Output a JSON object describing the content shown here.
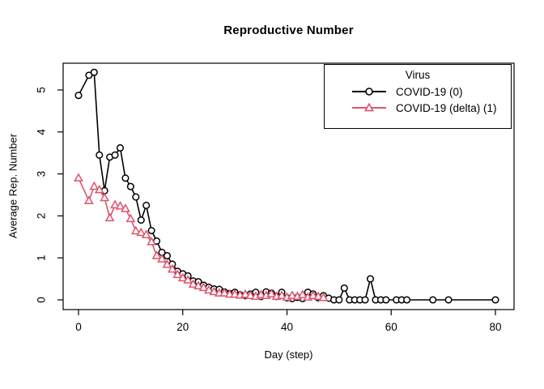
{
  "chart_data": {
    "type": "line",
    "title": "Reproductive Number",
    "xlabel": "Day (step)",
    "ylabel": "Average Rep. Number",
    "xlim": [
      0,
      80
    ],
    "ylim": [
      0,
      5.45
    ],
    "xticks": [
      0,
      20,
      40,
      60,
      80
    ],
    "yticks": [
      0,
      1,
      2,
      3,
      4,
      5
    ],
    "grid": false,
    "marker_style": "open",
    "legend": {
      "title": "Virus",
      "position": "top-right",
      "entries": [
        {
          "label": "COVID-19 (0)",
          "color": "#000000",
          "marker": "circle"
        },
        {
          "label": "COVID-19 (delta) (1)",
          "color": "#DF536B",
          "marker": "triangle"
        }
      ]
    },
    "series": [
      {
        "name": "COVID-19 (0)",
        "color": "#000000",
        "marker": "circle",
        "points": [
          [
            0,
            4.87
          ],
          [
            2,
            5.35
          ],
          [
            3,
            5.42
          ],
          [
            4,
            3.45
          ],
          [
            5,
            2.6
          ],
          [
            6,
            3.4
          ],
          [
            7,
            3.45
          ],
          [
            8,
            3.62
          ],
          [
            9,
            2.9
          ],
          [
            10,
            2.7
          ],
          [
            11,
            2.45
          ],
          [
            12,
            1.9
          ],
          [
            13,
            2.25
          ],
          [
            14,
            1.65
          ],
          [
            15,
            1.4
          ],
          [
            16,
            1.13
          ],
          [
            17,
            1.05
          ],
          [
            18,
            0.85
          ],
          [
            19,
            0.68
          ],
          [
            20,
            0.62
          ],
          [
            21,
            0.57
          ],
          [
            22,
            0.45
          ],
          [
            23,
            0.43
          ],
          [
            24,
            0.35
          ],
          [
            25,
            0.3
          ],
          [
            26,
            0.26
          ],
          [
            27,
            0.25
          ],
          [
            28,
            0.19
          ],
          [
            29,
            0.15
          ],
          [
            30,
            0.18
          ],
          [
            31,
            0.12
          ],
          [
            32,
            0.1
          ],
          [
            33,
            0.14
          ],
          [
            34,
            0.18
          ],
          [
            35,
            0.08
          ],
          [
            36,
            0.19
          ],
          [
            37,
            0.16
          ],
          [
            38,
            0.08
          ],
          [
            39,
            0.18
          ],
          [
            40,
            0.05
          ],
          [
            41,
            0.03
          ],
          [
            42,
            0.06
          ],
          [
            43,
            0.03
          ],
          [
            44,
            0.18
          ],
          [
            45,
            0.14
          ],
          [
            46,
            0.05
          ],
          [
            47,
            0.1
          ],
          [
            48,
            0.04
          ],
          [
            49,
            0
          ],
          [
            50,
            0
          ],
          [
            51,
            0.28
          ],
          [
            52,
            0
          ],
          [
            53,
            0
          ],
          [
            54,
            0
          ],
          [
            55,
            0
          ],
          [
            56,
            0.5
          ],
          [
            57,
            0
          ],
          [
            58,
            0
          ],
          [
            59,
            0
          ],
          [
            61,
            0
          ],
          [
            62,
            0
          ],
          [
            63,
            0
          ],
          [
            68,
            0
          ],
          [
            71,
            0
          ],
          [
            80,
            0
          ]
        ]
      },
      {
        "name": "COVID-19 (delta) (1)",
        "color": "#DF536B",
        "marker": "triangle",
        "points": [
          [
            0,
            2.9
          ],
          [
            2,
            2.36
          ],
          [
            3,
            2.7
          ],
          [
            4,
            2.62
          ],
          [
            5,
            2.43
          ],
          [
            6,
            1.95
          ],
          [
            7,
            2.26
          ],
          [
            8,
            2.23
          ],
          [
            9,
            2.17
          ],
          [
            10,
            1.93
          ],
          [
            11,
            1.64
          ],
          [
            12,
            1.6
          ],
          [
            13,
            1.55
          ],
          [
            14,
            1.38
          ],
          [
            15,
            1.05
          ],
          [
            16,
            0.97
          ],
          [
            17,
            0.84
          ],
          [
            18,
            0.73
          ],
          [
            19,
            0.6
          ],
          [
            20,
            0.52
          ],
          [
            21,
            0.47
          ],
          [
            22,
            0.37
          ],
          [
            23,
            0.33
          ],
          [
            24,
            0.29
          ],
          [
            25,
            0.23
          ],
          [
            26,
            0.19
          ],
          [
            27,
            0.16
          ],
          [
            28,
            0.16
          ],
          [
            29,
            0.13
          ],
          [
            30,
            0.13
          ],
          [
            31,
            0.11
          ],
          [
            32,
            0.13
          ],
          [
            33,
            0.1
          ],
          [
            34,
            0.08
          ],
          [
            35,
            0.12
          ],
          [
            36,
            0.1
          ],
          [
            37,
            0.14
          ],
          [
            38,
            0.08
          ],
          [
            39,
            0.1
          ],
          [
            40,
            0.06
          ],
          [
            41,
            0.1
          ],
          [
            42,
            0.08
          ],
          [
            43,
            0.12
          ],
          [
            44,
            0.06
          ],
          [
            45,
            0.1
          ],
          [
            46,
            0.08
          ],
          [
            47,
            0.05
          ]
        ]
      }
    ]
  }
}
